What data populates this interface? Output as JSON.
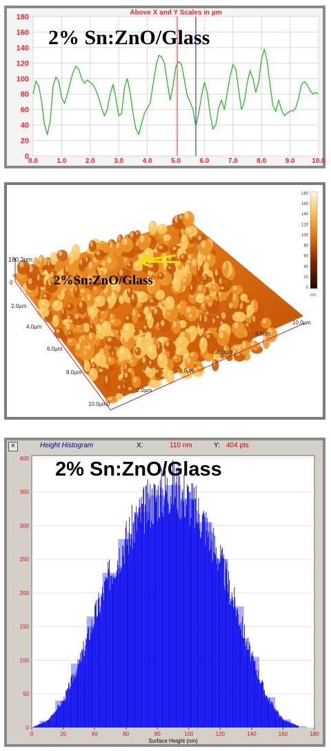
{
  "panels": [
    {
      "id": "line-profile",
      "header": "Above X and Y Scales in µm",
      "overlay_title": "2% Sn:ZnO/Glass"
    },
    {
      "id": "afm-3d",
      "overlay_title": "2%Sn:ZnO/Glass",
      "z_label": "180.3nm",
      "colorbar_unit": "nm",
      "axis_front_labels": [
        "0",
        "2.0µm",
        "4.0µm",
        "6.0µm",
        "8.0µm",
        "10.0µm0"
      ],
      "axis_right_labels": [
        "2.0µm",
        "4.0µm",
        "6.0µm",
        "8.0µm",
        "10.0µm"
      ],
      "colorbar_ticks": [
        "180",
        "160",
        "140",
        "120",
        "100",
        "80",
        "60",
        "40",
        "20",
        "0"
      ]
    },
    {
      "id": "histogram",
      "window_title": "Height Histogram",
      "x_readout_label": "X:",
      "x_readout_value": "110 nm",
      "y_readout_label": "Y:",
      "y_readout_value": "404 pts",
      "overlay_title": "2% Sn:ZnO/Glass",
      "xlabel": "Surface Height (nm)"
    }
  ],
  "colors": {
    "profile_line": "#22bb22",
    "profile_axis_labels": "#ff2222",
    "cursor_red": "#ff4444",
    "cursor_blue": "#3333ff",
    "histogram_bars": "#1010ee",
    "hist_axis_labels": "#d01010"
  },
  "chart_data": [
    {
      "type": "line",
      "title": "Above X and Y Scales in µm",
      "xlim": [
        0,
        10
      ],
      "ylim": [
        0,
        180
      ],
      "xticks": [
        "0.0",
        "1.0",
        "2.0",
        "3.0",
        "4.0",
        "5.0",
        "6.0",
        "7.0",
        "8.0",
        "9.0",
        "10.0"
      ],
      "yticks": [
        "0",
        "20",
        "40",
        "60",
        "80",
        "100",
        "120",
        "140",
        "160",
        "180"
      ],
      "grid": true,
      "cursors": [
        5.05,
        5.7
      ],
      "x": [
        0.0,
        0.1,
        0.2,
        0.3,
        0.4,
        0.5,
        0.6,
        0.7,
        0.8,
        0.9,
        1.0,
        1.1,
        1.2,
        1.3,
        1.4,
        1.5,
        1.6,
        1.7,
        1.8,
        1.9,
        2.0,
        2.1,
        2.2,
        2.3,
        2.4,
        2.5,
        2.6,
        2.7,
        2.8,
        2.9,
        3.0,
        3.1,
        3.2,
        3.3,
        3.4,
        3.5,
        3.6,
        3.7,
        3.8,
        3.9,
        4.0,
        4.1,
        4.2,
        4.3,
        4.4,
        4.5,
        4.6,
        4.7,
        4.8,
        4.9,
        5.0,
        5.1,
        5.2,
        5.3,
        5.4,
        5.5,
        5.6,
        5.7,
        5.8,
        5.9,
        6.0,
        6.1,
        6.2,
        6.3,
        6.4,
        6.5,
        6.6,
        6.7,
        6.8,
        6.9,
        7.0,
        7.1,
        7.2,
        7.3,
        7.4,
        7.5,
        7.6,
        7.7,
        7.8,
        7.9,
        8.0,
        8.1,
        8.2,
        8.3,
        8.4,
        8.5,
        8.6,
        8.7,
        8.8,
        8.9,
        9.0,
        9.1,
        9.2,
        9.3,
        9.4,
        9.5,
        9.6,
        9.7,
        9.8,
        9.9,
        10.0
      ],
      "y": [
        80,
        97,
        90,
        70,
        40,
        28,
        45,
        90,
        102,
        96,
        75,
        68,
        80,
        95,
        108,
        116,
        112,
        100,
        94,
        98,
        95,
        92,
        85,
        75,
        62,
        52,
        60,
        80,
        92,
        75,
        52,
        55,
        88,
        100,
        82,
        55,
        35,
        28,
        42,
        55,
        62,
        68,
        92,
        115,
        130,
        128,
        120,
        95,
        72,
        90,
        115,
        122,
        118,
        98,
        78,
        70,
        60,
        38,
        55,
        78,
        95,
        82,
        55,
        35,
        40,
        62,
        72,
        60,
        82,
        102,
        118,
        112,
        85,
        60,
        70,
        95,
        110,
        100,
        82,
        95,
        125,
        138,
        122,
        92,
        65,
        58,
        72,
        60,
        52,
        55,
        58,
        58,
        62,
        75,
        92,
        96,
        92,
        85,
        80,
        82,
        80
      ]
    },
    {
      "type": "bar",
      "title": "Height Histogram",
      "xlabel": "Surface Height (nm)",
      "xlim": [
        0,
        180
      ],
      "ylim": [
        0,
        404
      ],
      "xticks": [
        "0",
        "20",
        "40",
        "60",
        "80",
        "100",
        "120",
        "140",
        "160",
        "180"
      ],
      "yticks": [
        "0",
        "50",
        "100",
        "150",
        "200",
        "250",
        "300",
        "350",
        "400"
      ],
      "x": [
        10,
        20,
        30,
        40,
        50,
        60,
        70,
        80,
        90,
        100,
        110,
        120,
        130,
        140,
        150,
        160,
        170
      ],
      "values": [
        10,
        40,
        95,
        165,
        230,
        280,
        320,
        345,
        360,
        340,
        305,
        250,
        180,
        105,
        45,
        12,
        2
      ]
    }
  ]
}
